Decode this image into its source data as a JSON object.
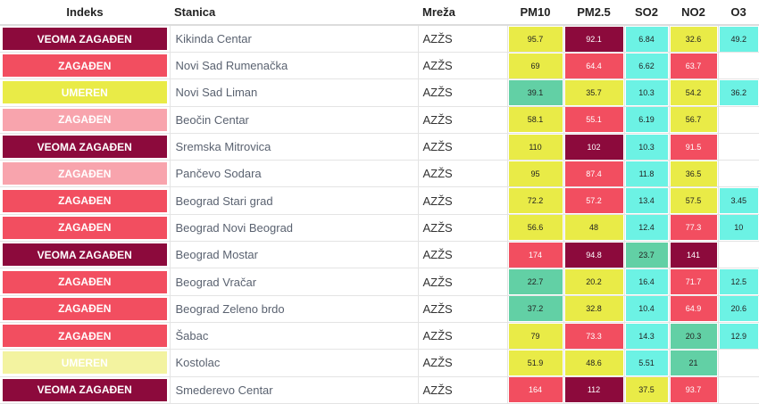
{
  "headers": {
    "index": "Indeks",
    "station": "Stanica",
    "network": "Mreža",
    "pm10": "PM10",
    "pm25": "PM2.5",
    "so2": "SO2",
    "no2": "NO2",
    "o3": "O3"
  },
  "colors": {
    "veoma_zagadjen": "#8c0a3c",
    "zagadjen": "#f24e60",
    "zagadjen_light": "#f8a4ad",
    "umeren": "#e9eb47",
    "umeren_light": "#f3f3a0",
    "dobar": "#62d0a5",
    "odlican": "#6cf2e4"
  },
  "rows": [
    {
      "index": "VEOMA ZAGAĐEN",
      "index_color": "veoma_zagadjen",
      "station": "Kikinda Centar",
      "network": "AZŽS",
      "pm10": {
        "v": "95.7",
        "c": "umeren"
      },
      "pm25": {
        "v": "92.1",
        "c": "veoma_zagadjen"
      },
      "so2": {
        "v": "6.84",
        "c": "odlican"
      },
      "no2": {
        "v": "32.6",
        "c": "umeren"
      },
      "o3": {
        "v": "49.2",
        "c": "odlican"
      }
    },
    {
      "index": "ZAGAĐEN",
      "index_color": "zagadjen",
      "station": "Novi Sad Rumenačka",
      "network": "AZŽS",
      "pm10": {
        "v": "69",
        "c": "umeren"
      },
      "pm25": {
        "v": "64.4",
        "c": "zagadjen"
      },
      "so2": {
        "v": "6.62",
        "c": "odlican"
      },
      "no2": {
        "v": "63.7",
        "c": "zagadjen"
      },
      "o3": {
        "v": "",
        "c": ""
      }
    },
    {
      "index": "UMEREN",
      "index_color": "umeren",
      "station": "Novi Sad Liman",
      "network": "AZŽS",
      "pm10": {
        "v": "39.1",
        "c": "dobar"
      },
      "pm25": {
        "v": "35.7",
        "c": "umeren"
      },
      "so2": {
        "v": "10.3",
        "c": "odlican"
      },
      "no2": {
        "v": "54.2",
        "c": "umeren"
      },
      "o3": {
        "v": "36.2",
        "c": "odlican"
      }
    },
    {
      "index": "ZAGAĐEN",
      "index_color": "zagadjen_light",
      "station": "Beočin Centar",
      "network": "AZŽS",
      "pm10": {
        "v": "58.1",
        "c": "umeren"
      },
      "pm25": {
        "v": "55.1",
        "c": "zagadjen"
      },
      "so2": {
        "v": "6.19",
        "c": "odlican"
      },
      "no2": {
        "v": "56.7",
        "c": "umeren"
      },
      "o3": {
        "v": "",
        "c": ""
      }
    },
    {
      "index": "VEOMA ZAGAĐEN",
      "index_color": "veoma_zagadjen",
      "station": "Sremska Mitrovica",
      "network": "AZŽS",
      "pm10": {
        "v": "110",
        "c": "umeren"
      },
      "pm25": {
        "v": "102",
        "c": "veoma_zagadjen"
      },
      "so2": {
        "v": "10.3",
        "c": "odlican"
      },
      "no2": {
        "v": "91.5",
        "c": "zagadjen"
      },
      "o3": {
        "v": "",
        "c": ""
      }
    },
    {
      "index": "ZAGAĐEN",
      "index_color": "zagadjen_light",
      "station": "Pančevo Sodara",
      "network": "AZŽS",
      "pm10": {
        "v": "95",
        "c": "umeren"
      },
      "pm25": {
        "v": "87.4",
        "c": "zagadjen"
      },
      "so2": {
        "v": "11.8",
        "c": "odlican"
      },
      "no2": {
        "v": "36.5",
        "c": "umeren"
      },
      "o3": {
        "v": "",
        "c": ""
      }
    },
    {
      "index": "ZAGAĐEN",
      "index_color": "zagadjen",
      "station": "Beograd Stari grad",
      "network": "AZŽS",
      "pm10": {
        "v": "72.2",
        "c": "umeren"
      },
      "pm25": {
        "v": "57.2",
        "c": "zagadjen"
      },
      "so2": {
        "v": "13.4",
        "c": "odlican"
      },
      "no2": {
        "v": "57.5",
        "c": "umeren"
      },
      "o3": {
        "v": "3.45",
        "c": "odlican"
      }
    },
    {
      "index": "ZAGAĐEN",
      "index_color": "zagadjen",
      "station": "Beograd Novi Beograd",
      "network": "AZŽS",
      "pm10": {
        "v": "56.6",
        "c": "umeren"
      },
      "pm25": {
        "v": "48",
        "c": "umeren"
      },
      "so2": {
        "v": "12.4",
        "c": "odlican"
      },
      "no2": {
        "v": "77.3",
        "c": "zagadjen"
      },
      "o3": {
        "v": "10",
        "c": "odlican"
      }
    },
    {
      "index": "VEOMA ZAGAĐEN",
      "index_color": "veoma_zagadjen",
      "station": "Beograd Mostar",
      "network": "AZŽS",
      "pm10": {
        "v": "174",
        "c": "zagadjen"
      },
      "pm25": {
        "v": "94.8",
        "c": "veoma_zagadjen"
      },
      "so2": {
        "v": "23.7",
        "c": "dobar"
      },
      "no2": {
        "v": "141",
        "c": "veoma_zagadjen"
      },
      "o3": {
        "v": "",
        "c": ""
      }
    },
    {
      "index": "ZAGAĐEN",
      "index_color": "zagadjen",
      "station": "Beograd Vračar",
      "network": "AZŽS",
      "pm10": {
        "v": "22.7",
        "c": "dobar"
      },
      "pm25": {
        "v": "20.2",
        "c": "umeren"
      },
      "so2": {
        "v": "16.4",
        "c": "odlican"
      },
      "no2": {
        "v": "71.7",
        "c": "zagadjen"
      },
      "o3": {
        "v": "12.5",
        "c": "odlican"
      }
    },
    {
      "index": "ZAGAĐEN",
      "index_color": "zagadjen",
      "station": "Beograd Zeleno brdo",
      "network": "AZŽS",
      "pm10": {
        "v": "37.2",
        "c": "dobar"
      },
      "pm25": {
        "v": "32.8",
        "c": "umeren"
      },
      "so2": {
        "v": "10.4",
        "c": "odlican"
      },
      "no2": {
        "v": "64.9",
        "c": "zagadjen"
      },
      "o3": {
        "v": "20.6",
        "c": "odlican"
      }
    },
    {
      "index": "ZAGAĐEN",
      "index_color": "zagadjen",
      "station": "Šabac",
      "network": "AZŽS",
      "pm10": {
        "v": "79",
        "c": "umeren"
      },
      "pm25": {
        "v": "73.3",
        "c": "zagadjen"
      },
      "so2": {
        "v": "14.3",
        "c": "odlican"
      },
      "no2": {
        "v": "20.3",
        "c": "dobar"
      },
      "o3": {
        "v": "12.9",
        "c": "odlican"
      }
    },
    {
      "index": "UMEREN",
      "index_color": "umeren_light",
      "station": "Kostolac",
      "network": "AZŽS",
      "pm10": {
        "v": "51.9",
        "c": "umeren"
      },
      "pm25": {
        "v": "48.6",
        "c": "umeren"
      },
      "so2": {
        "v": "5.51",
        "c": "odlican"
      },
      "no2": {
        "v": "21",
        "c": "dobar"
      },
      "o3": {
        "v": "",
        "c": ""
      }
    },
    {
      "index": "VEOMA ZAGAĐEN",
      "index_color": "veoma_zagadjen",
      "station": "Smederevo Centar",
      "network": "AZŽS",
      "pm10": {
        "v": "164",
        "c": "zagadjen"
      },
      "pm25": {
        "v": "112",
        "c": "veoma_zagadjen"
      },
      "so2": {
        "v": "37.5",
        "c": "umeren"
      },
      "no2": {
        "v": "93.7",
        "c": "zagadjen"
      },
      "o3": {
        "v": "",
        "c": ""
      }
    }
  ]
}
